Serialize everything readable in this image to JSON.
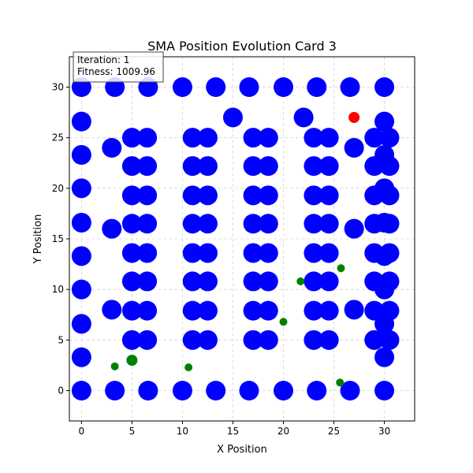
{
  "chart_data": {
    "type": "scatter",
    "title": "SMA Position Evolution Card 3",
    "xlabel": "X Position",
    "ylabel": "Y Position",
    "xlim": [
      -1.2,
      33.0
    ],
    "ylim": [
      -3.0,
      33.0
    ],
    "xticks": [
      0,
      5,
      10,
      15,
      20,
      25,
      30
    ],
    "yticks": [
      0,
      5,
      10,
      15,
      20,
      25,
      30
    ],
    "grid": true,
    "info_box": {
      "iteration_text": "Iteration: 1",
      "fitness_text": "Fitness: 1009.96"
    },
    "colors": {
      "blue": "#0000ff",
      "red": "#ff0000",
      "green": "#008000",
      "grid": "#b0b0b0"
    },
    "blue_points": [
      [
        0,
        0
      ],
      [
        3.3,
        0
      ],
      [
        6.6,
        0
      ],
      [
        10,
        0
      ],
      [
        13.3,
        0
      ],
      [
        16.6,
        0
      ],
      [
        20,
        0
      ],
      [
        23.3,
        0
      ],
      [
        26.6,
        0
      ],
      [
        30,
        0
      ],
      [
        0,
        30
      ],
      [
        3.3,
        30
      ],
      [
        6.6,
        30
      ],
      [
        10,
        30
      ],
      [
        13.3,
        30
      ],
      [
        16.6,
        30
      ],
      [
        20,
        30
      ],
      [
        23.3,
        30
      ],
      [
        26.6,
        30
      ],
      [
        30,
        30
      ],
      [
        0,
        3.3
      ],
      [
        0,
        6.6
      ],
      [
        0,
        10
      ],
      [
        0,
        13.3
      ],
      [
        0,
        16.6
      ],
      [
        0,
        20
      ],
      [
        0,
        23.3
      ],
      [
        0,
        26.6
      ],
      [
        30,
        3.3
      ],
      [
        30,
        6.6
      ],
      [
        30,
        10
      ],
      [
        30,
        13.3
      ],
      [
        30,
        16.6
      ],
      [
        30,
        20
      ],
      [
        30,
        23.3
      ],
      [
        30,
        26.6
      ],
      [
        15,
        27
      ],
      [
        22,
        27
      ],
      [
        3,
        8
      ],
      [
        3,
        16
      ],
      [
        3,
        24
      ],
      [
        27,
        8
      ],
      [
        27,
        16
      ],
      [
        27,
        24
      ],
      [
        5,
        5
      ],
      [
        6.5,
        5
      ],
      [
        5,
        7.9
      ],
      [
        6.5,
        7.9
      ],
      [
        5,
        10.8
      ],
      [
        6.5,
        10.8
      ],
      [
        5,
        13.6
      ],
      [
        6.5,
        13.6
      ],
      [
        5,
        16.5
      ],
      [
        6.5,
        16.5
      ],
      [
        5,
        19.3
      ],
      [
        6.5,
        19.3
      ],
      [
        5,
        22.2
      ],
      [
        6.5,
        22.2
      ],
      [
        5,
        25
      ],
      [
        6.5,
        25
      ],
      [
        11,
        5
      ],
      [
        12.5,
        5
      ],
      [
        11,
        7.9
      ],
      [
        12.5,
        7.9
      ],
      [
        11,
        10.8
      ],
      [
        12.5,
        10.8
      ],
      [
        11,
        13.6
      ],
      [
        12.5,
        13.6
      ],
      [
        11,
        16.5
      ],
      [
        12.5,
        16.5
      ],
      [
        11,
        19.3
      ],
      [
        12.5,
        19.3
      ],
      [
        11,
        22.2
      ],
      [
        12.5,
        22.2
      ],
      [
        11,
        25
      ],
      [
        12.5,
        25
      ],
      [
        17,
        5
      ],
      [
        18.5,
        5
      ],
      [
        17,
        7.9
      ],
      [
        18.5,
        7.9
      ],
      [
        17,
        10.8
      ],
      [
        18.5,
        10.8
      ],
      [
        17,
        13.6
      ],
      [
        18.5,
        13.6
      ],
      [
        17,
        16.5
      ],
      [
        18.5,
        16.5
      ],
      [
        17,
        19.3
      ],
      [
        18.5,
        19.3
      ],
      [
        17,
        22.2
      ],
      [
        18.5,
        22.2
      ],
      [
        17,
        25
      ],
      [
        18.5,
        25
      ],
      [
        23,
        5
      ],
      [
        24.5,
        5
      ],
      [
        23,
        7.9
      ],
      [
        24.5,
        7.9
      ],
      [
        23,
        10.8
      ],
      [
        24.5,
        10.8
      ],
      [
        23,
        13.6
      ],
      [
        24.5,
        13.6
      ],
      [
        23,
        16.5
      ],
      [
        24.5,
        16.5
      ],
      [
        23,
        19.3
      ],
      [
        24.5,
        19.3
      ],
      [
        23,
        22.2
      ],
      [
        24.5,
        22.2
      ],
      [
        23,
        25
      ],
      [
        24.5,
        25
      ],
      [
        29,
        5
      ],
      [
        30.5,
        5
      ],
      [
        29,
        7.9
      ],
      [
        30.5,
        7.9
      ],
      [
        29,
        10.8
      ],
      [
        30.5,
        10.8
      ],
      [
        29,
        13.6
      ],
      [
        30.5,
        13.6
      ],
      [
        29,
        16.5
      ],
      [
        30.5,
        16.5
      ],
      [
        29,
        19.3
      ],
      [
        30.5,
        19.3
      ],
      [
        29,
        22.2
      ],
      [
        30.5,
        22.2
      ],
      [
        29,
        25
      ],
      [
        30.5,
        25
      ]
    ],
    "red_points": [
      [
        27,
        27
      ]
    ],
    "green_points": [
      [
        3.3,
        2.4
      ],
      [
        5,
        3
      ],
      [
        10.6,
        2.3
      ],
      [
        20,
        6.8
      ],
      [
        21.7,
        10.8
      ],
      [
        25.7,
        12.1
      ],
      [
        25.6,
        0.8
      ]
    ],
    "green_large_points": [
      [
        5,
        3
      ]
    ]
  }
}
